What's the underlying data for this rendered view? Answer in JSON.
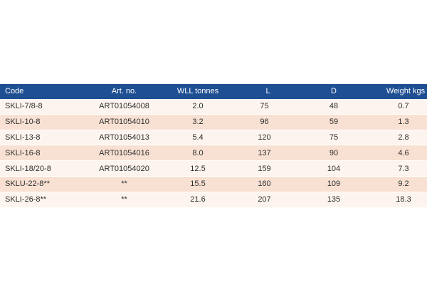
{
  "table": {
    "headers": {
      "code": "Code",
      "art_no": "Art. no.",
      "wll": "WLL tonnes",
      "l": "L",
      "d": "D",
      "weight": "Weight kgs"
    },
    "rows": [
      {
        "code": "SKLI-7/8-8",
        "art_no": "ART01054008",
        "wll": "2.0",
        "l": "75",
        "d": "48",
        "weight": "0.7"
      },
      {
        "code": "SKLI-10-8",
        "art_no": "ART01054010",
        "wll": "3.2",
        "l": "96",
        "d": "59",
        "weight": "1.3"
      },
      {
        "code": "SKLI-13-8",
        "art_no": "ART01054013",
        "wll": "5.4",
        "l": "120",
        "d": "75",
        "weight": "2.8"
      },
      {
        "code": "SKLI-16-8",
        "art_no": "ART01054016",
        "wll": "8.0",
        "l": "137",
        "d": "90",
        "weight": "4.6"
      },
      {
        "code": "SKLI-18/20-8",
        "art_no": "ART01054020",
        "wll": "12.5",
        "l": "159",
        "d": "104",
        "weight": "7.3"
      },
      {
        "code": "SKLU-22-8**",
        "art_no": "**",
        "wll": "15.5",
        "l": "160",
        "d": "109",
        "weight": "9.2"
      },
      {
        "code": "SKLI-26-8**",
        "art_no": "**",
        "wll": "21.6",
        "l": "207",
        "d": "135",
        "weight": "18.3"
      }
    ]
  },
  "colors": {
    "header_bg": "#1f4f93",
    "row_light": "#fdf4ef",
    "row_dark": "#f8e1d3"
  }
}
